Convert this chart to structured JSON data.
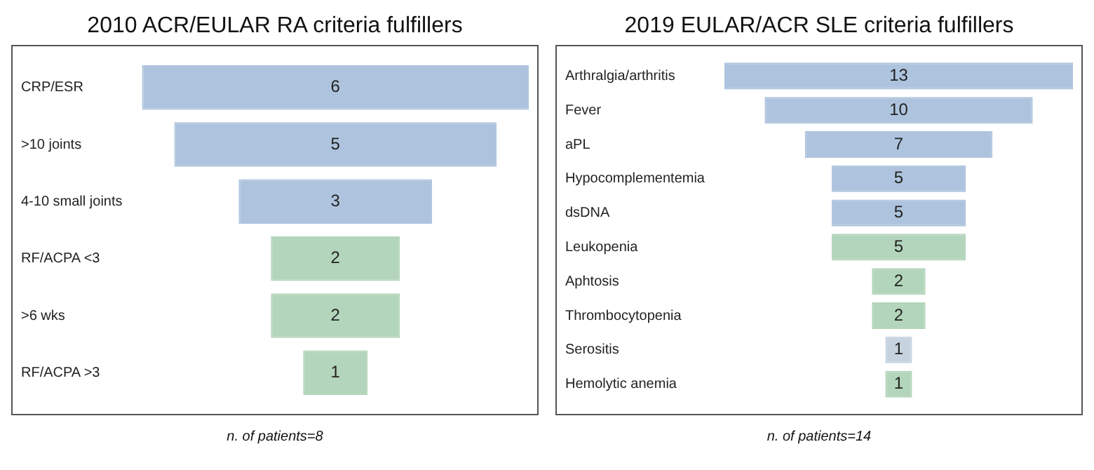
{
  "chart_data": [
    {
      "type": "other",
      "title": "2010 ACR/EULAR RA criteria fulfillers",
      "categories": [
        "CRP/ESR",
        ">10 joints",
        "4-10 small joints",
        "RF/ACPA <3",
        ">6 wks",
        "RF/ACPA >3"
      ],
      "values": [
        6,
        5,
        3,
        2,
        2,
        1
      ],
      "colors": [
        "#aec4de",
        "#aec4de",
        "#aec4de",
        "#b3d5bb",
        "#b3d5bb",
        "#b3d5bb"
      ],
      "data_labels": true,
      "annotations": [
        "n. of patients=8"
      ]
    },
    {
      "type": "other",
      "title": "2019 EULAR/ACR SLE criteria fulfillers",
      "categories": [
        "Arthralgia/arthritis",
        "Fever",
        "aPL",
        "Hypocomplementemia",
        "dsDNA",
        "Leukopenia",
        "Aphtosis",
        "Thrombocytopenia",
        "Serositis",
        "Hemolytic anemia"
      ],
      "values": [
        13,
        10,
        7,
        5,
        5,
        5,
        2,
        2,
        1,
        1
      ],
      "colors": [
        "#aec4de",
        "#aec4de",
        "#aec4de",
        "#aec4de",
        "#aec4de",
        "#b3d5bb",
        "#b3d5bb",
        "#b3d5bb",
        "#c6d3df",
        "#b3d5bb"
      ],
      "data_labels": true,
      "annotations": [
        "n. of patients=14"
      ]
    }
  ]
}
